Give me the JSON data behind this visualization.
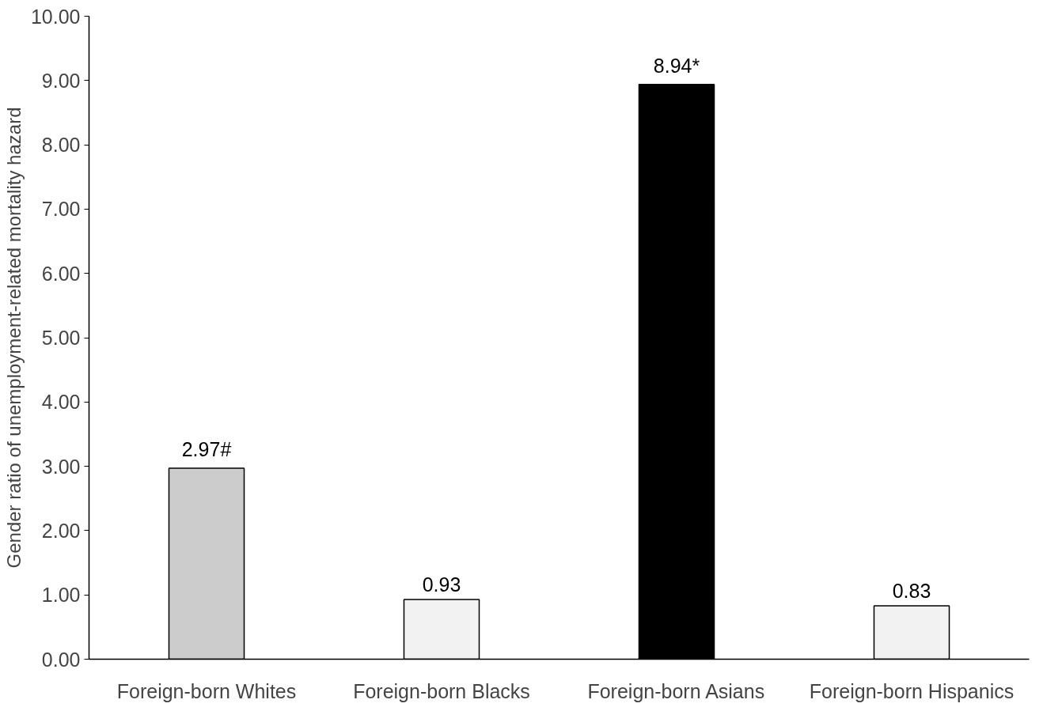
{
  "chart_data": {
    "type": "bar",
    "ylabel": "Gender ratio of unemployment-related mortality hazard",
    "categories": [
      "Foreign-born Whites",
      "Foreign-born Blacks",
      "Foreign-born Asians",
      "Foreign-born Hispanics"
    ],
    "values": [
      2.97,
      0.93,
      8.94,
      0.83
    ],
    "colors": [
      "#cccccc",
      "#f2f2f2",
      "#000000",
      "#f2f2f2"
    ],
    "value_labels": [
      "2.97#",
      "0.93",
      "8.94*",
      "0.83"
    ],
    "ylim": [
      0,
      10
    ],
    "yticks": [
      {
        "value": 0,
        "label": "0.00"
      },
      {
        "value": 1,
        "label": "1.00"
      },
      {
        "value": 2,
        "label": "2.00"
      },
      {
        "value": 3,
        "label": "3.00"
      },
      {
        "value": 4,
        "label": "4.00"
      },
      {
        "value": 5,
        "label": "5.00"
      },
      {
        "value": 6,
        "label": "6.00"
      },
      {
        "value": 7,
        "label": "7.00"
      },
      {
        "value": 8,
        "label": "8.00"
      },
      {
        "value": 9,
        "label": "9.00"
      },
      {
        "value": 10,
        "label": "10.00"
      }
    ],
    "grid": false
  }
}
